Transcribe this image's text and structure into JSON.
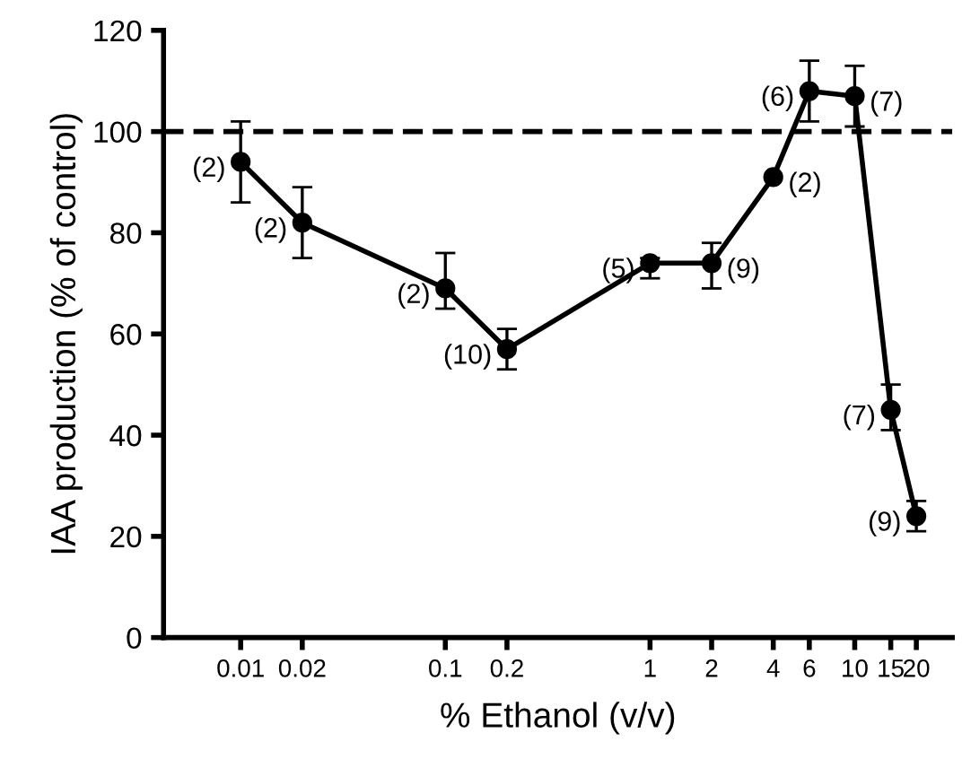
{
  "chart_data": {
    "type": "line",
    "xlabel": "% Ethanol (v/v)",
    "ylabel": "IAA production (% of control)",
    "log": "x",
    "x": [
      0.01,
      0.02,
      0.1,
      0.2,
      1,
      2,
      4,
      6,
      10,
      15,
      20
    ],
    "values": [
      94,
      82,
      69,
      57,
      74,
      74,
      91,
      108,
      107,
      45,
      24
    ],
    "errors": [
      [
        86,
        102
      ],
      [
        75,
        89
      ],
      [
        65,
        76
      ],
      [
        53,
        61
      ],
      [
        71,
        75
      ],
      [
        69,
        78
      ],
      null,
      [
        102,
        114
      ],
      [
        101,
        113
      ],
      [
        41,
        50
      ],
      [
        21,
        27
      ]
    ],
    "color": "#000000",
    "marker": "circle",
    "line_style": "solid",
    "xlim": [
      0.0042,
      30
    ],
    "xticks": [
      0.01,
      0.02,
      0.1,
      0.2,
      1,
      2,
      4,
      6,
      10,
      15,
      20
    ],
    "ylim": [
      0,
      120
    ],
    "yticks": [
      0,
      20,
      40,
      60,
      80,
      100,
      120
    ],
    "grid": false,
    "ref_lines": [
      {
        "axis": "y",
        "value": 100,
        "line_style": "dashed",
        "color": "#000000"
      }
    ],
    "annotations": [
      {
        "text": "(2)",
        "x": 0.01,
        "y": 94
      },
      {
        "text": "(2)",
        "x": 0.02,
        "y": 82
      },
      {
        "text": "(2)",
        "x": 0.1,
        "y": 69
      },
      {
        "text": "(10)",
        "x": 0.2,
        "y": 57
      },
      {
        "text": "(5)",
        "x": 1,
        "y": 74
      },
      {
        "text": "(9)",
        "x": 2,
        "y": 74
      },
      {
        "text": "(2)",
        "x": 4,
        "y": 91
      },
      {
        "text": "(6)",
        "x": 6,
        "y": 108
      },
      {
        "text": "(7)",
        "x": 10,
        "y": 107
      },
      {
        "text": "(7)",
        "x": 15,
        "y": 45
      },
      {
        "text": "(9)",
        "x": 20,
        "y": 24
      }
    ]
  }
}
